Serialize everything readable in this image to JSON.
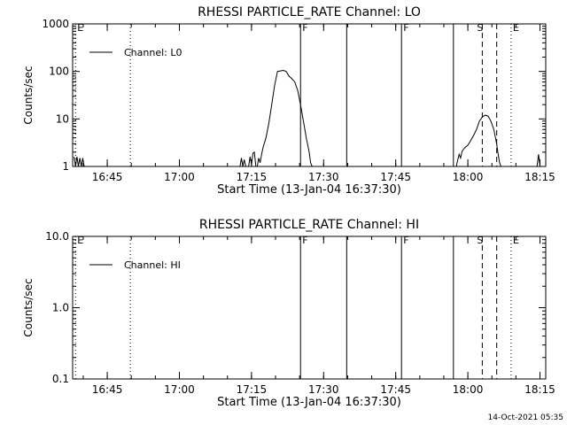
{
  "timestamp": "14-Oct-2021 05:35",
  "chart_data": [
    {
      "type": "line",
      "title": "RHESSI PARTICLE_RATE Channel: LO",
      "xlabel": "Start Time (13-Jan-04 16:37:30)",
      "ylabel": "Counts/sec",
      "yscale": "log",
      "ylim": [
        1,
        1000
      ],
      "xlim": [
        16.63,
        18.27
      ],
      "xticks": [
        {
          "v": 16.75,
          "label": "16:45"
        },
        {
          "v": 17.0,
          "label": "17:00"
        },
        {
          "v": 17.25,
          "label": "17:15"
        },
        {
          "v": 17.5,
          "label": "17:30"
        },
        {
          "v": 17.75,
          "label": "17:45"
        },
        {
          "v": 18.0,
          "label": "18:00"
        },
        {
          "v": 18.25,
          "label": "18:15"
        }
      ],
      "yticks": [
        {
          "v": 1,
          "label": "1"
        },
        {
          "v": 10,
          "label": "10"
        },
        {
          "v": 100,
          "label": "100"
        },
        {
          "v": 1000,
          "label": "1000"
        }
      ],
      "legend": "Channel: L0",
      "legend_position": "top-left",
      "markers": [
        {
          "x": 16.64,
          "style": "dotted",
          "label": "E"
        },
        {
          "x": 16.83,
          "style": "dotted",
          "label": ""
        },
        {
          "x": 17.42,
          "style": "solid",
          "label": "F"
        },
        {
          "x": 17.58,
          "style": "solid",
          "label": ""
        },
        {
          "x": 17.77,
          "style": "solid",
          "label": "F"
        },
        {
          "x": 17.95,
          "style": "solid",
          "label": ""
        },
        {
          "x": 18.05,
          "style": "dashed",
          "label": "S"
        },
        {
          "x": 18.1,
          "style": "dashed",
          "label": ""
        },
        {
          "x": 18.15,
          "style": "dotted",
          "label": "E"
        },
        {
          "x": 18.35,
          "style": "dotted",
          "label": ""
        }
      ],
      "series": [
        {
          "name": "Channel: L0",
          "points": [
            [
              16.635,
              1.6
            ],
            [
              16.64,
              1.0
            ],
            [
              16.645,
              1.6
            ],
            [
              16.65,
              1.0
            ],
            [
              16.655,
              1.5
            ],
            [
              16.66,
              1.0
            ],
            [
              16.665,
              1.5
            ],
            [
              16.67,
              1.0
            ],
            [
              17.21,
              1.0
            ],
            [
              17.215,
              1.5
            ],
            [
              17.22,
              1.0
            ],
            [
              17.225,
              1.4
            ],
            [
              17.23,
              1.0
            ],
            [
              17.24,
              1.0
            ],
            [
              17.245,
              1.6
            ],
            [
              17.25,
              1.1
            ],
            [
              17.255,
              1.9
            ],
            [
              17.26,
              2.0
            ],
            [
              17.265,
              1.0
            ],
            [
              17.27,
              1.0
            ],
            [
              17.275,
              1.5
            ],
            [
              17.28,
              1.2
            ],
            [
              17.285,
              1.8
            ],
            [
              17.29,
              2.5
            ],
            [
              17.3,
              4.0
            ],
            [
              17.31,
              8.0
            ],
            [
              17.32,
              20.0
            ],
            [
              17.33,
              50.0
            ],
            [
              17.34,
              100.0
            ],
            [
              17.36,
              105.0
            ],
            [
              17.37,
              100.0
            ],
            [
              17.38,
              80.0
            ],
            [
              17.39,
              70.0
            ],
            [
              17.4,
              60.0
            ],
            [
              17.41,
              40.0
            ],
            [
              17.42,
              20.0
            ],
            [
              17.43,
              9.0
            ],
            [
              17.44,
              4.0
            ],
            [
              17.45,
              2.0
            ],
            [
              17.455,
              1.2
            ],
            [
              17.46,
              1.0
            ],
            [
              17.96,
              1.0
            ],
            [
              17.965,
              1.4
            ],
            [
              17.97,
              1.8
            ],
            [
              17.975,
              1.5
            ],
            [
              17.98,
              2.1
            ],
            [
              17.99,
              2.5
            ],
            [
              18.0,
              2.8
            ],
            [
              18.01,
              3.5
            ],
            [
              18.02,
              4.5
            ],
            [
              18.03,
              6.0
            ],
            [
              18.04,
              9.0
            ],
            [
              18.05,
              11.0
            ],
            [
              18.06,
              12.0
            ],
            [
              18.07,
              11.5
            ],
            [
              18.08,
              9.0
            ],
            [
              18.09,
              6.0
            ],
            [
              18.1,
              3.0
            ],
            [
              18.105,
              1.8
            ],
            [
              18.11,
              1.2
            ],
            [
              18.115,
              1.0
            ],
            [
              18.24,
              1.0
            ],
            [
              18.245,
              1.8
            ],
            [
              18.25,
              1.0
            ]
          ]
        }
      ]
    },
    {
      "type": "line",
      "title": "RHESSI PARTICLE_RATE Channel: HI",
      "xlabel": "Start Time (13-Jan-04 16:37:30)",
      "ylabel": "Counts/sec",
      "yscale": "log",
      "ylim": [
        0.1,
        10
      ],
      "xlim": [
        16.63,
        18.27
      ],
      "xticks": [
        {
          "v": 16.75,
          "label": "16:45"
        },
        {
          "v": 17.0,
          "label": "17:00"
        },
        {
          "v": 17.25,
          "label": "17:15"
        },
        {
          "v": 17.5,
          "label": "17:30"
        },
        {
          "v": 17.75,
          "label": "17:45"
        },
        {
          "v": 18.0,
          "label": "18:00"
        },
        {
          "v": 18.25,
          "label": "18:15"
        }
      ],
      "yticks": [
        {
          "v": 0.1,
          "label": "0.1"
        },
        {
          "v": 1.0,
          "label": "1.0"
        },
        {
          "v": 10.0,
          "label": "10.0"
        }
      ],
      "legend": "Channel: HI",
      "legend_position": "top-left",
      "markers": [
        {
          "x": 16.64,
          "style": "dotted",
          "label": "E"
        },
        {
          "x": 16.83,
          "style": "dotted",
          "label": ""
        },
        {
          "x": 17.42,
          "style": "solid",
          "label": "F"
        },
        {
          "x": 17.58,
          "style": "solid",
          "label": ""
        },
        {
          "x": 17.77,
          "style": "solid",
          "label": "F"
        },
        {
          "x": 17.95,
          "style": "solid",
          "label": ""
        },
        {
          "x": 18.05,
          "style": "dashed",
          "label": "S"
        },
        {
          "x": 18.1,
          "style": "dashed",
          "label": ""
        },
        {
          "x": 18.15,
          "style": "dotted",
          "label": "E"
        },
        {
          "x": 18.35,
          "style": "dotted",
          "label": ""
        }
      ],
      "series": [
        {
          "name": "Channel: HI",
          "points": []
        }
      ]
    }
  ]
}
